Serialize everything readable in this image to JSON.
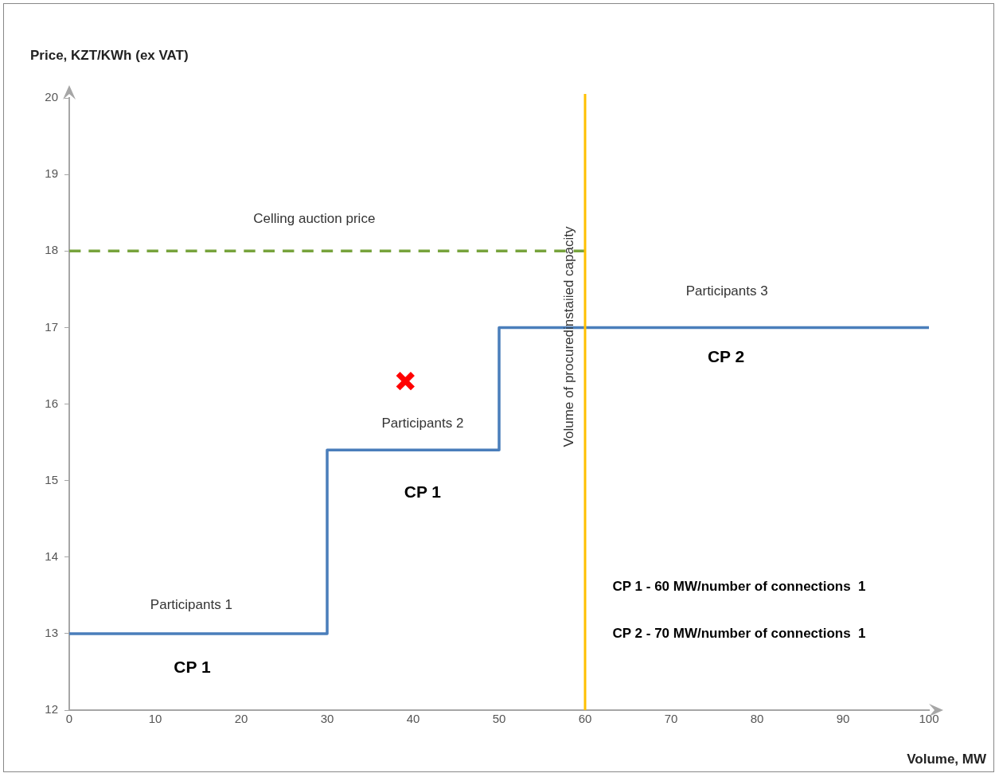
{
  "chart_data": {
    "type": "line",
    "xlabel": "Volume, MW",
    "ylabel": "Price, KZT/KWh (ex VAT)",
    "xlim": [
      0,
      100
    ],
    "xticks": [
      0,
      10,
      20,
      30,
      40,
      50,
      60,
      70,
      80,
      90,
      100
    ],
    "ylim": [
      12,
      20
    ],
    "yticks": [
      12,
      13,
      14,
      15,
      16,
      17,
      18,
      19,
      20
    ],
    "grid": false,
    "legend": false,
    "series": [
      {
        "color": "#4a7ebb",
        "x": [
          0,
          30,
          30,
          50,
          50,
          100
        ],
        "values": [
          13,
          13,
          15.4,
          15.4,
          17,
          17
        ]
      },
      {
        "color": "#77a33c",
        "line_style": "dashed",
        "x": [
          0,
          60
        ],
        "values": [
          18,
          18
        ]
      },
      {
        "type": "scatter",
        "color": "#ff0000",
        "marker": "cross",
        "x": [
          39.1
        ],
        "values": [
          16.3
        ]
      }
    ],
    "ref_lines": [
      {
        "axis": "x",
        "value": 60,
        "label": "Volume of procuredinstaiied capacity",
        "color": "#ffc000"
      }
    ],
    "annotations": [
      "Celling auction price",
      "Participants 1",
      "Participants 2",
      "Participants 3",
      "CP 1",
      "CP 1",
      "CP 2",
      "CP 1 - 60 MW/number of connections  1",
      "CP 2 - 70 MW/number of connections  1"
    ]
  }
}
